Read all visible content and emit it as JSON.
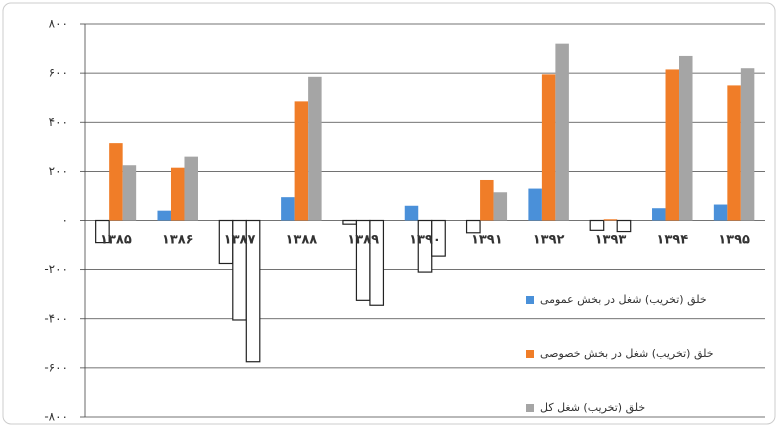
{
  "chart_data": {
    "type": "bar",
    "categories": [
      "۱۳۸۵",
      "۱۳۸۶",
      "۱۳۸۷",
      "۱۳۸۸",
      "۱۳۸۹",
      "۱۳۹۰",
      "۱۳۹۱",
      "۱۳۹۲",
      "۱۳۹۳",
      "۱۳۹۴",
      "۱۳۹۵"
    ],
    "series": [
      {
        "name": "خلق (تخریب) شغل در بخش عمومی",
        "color": "#4a90d9",
        "values": [
          -90,
          40,
          -175,
          95,
          -15,
          60,
          -50,
          130,
          -40,
          50,
          65
        ]
      },
      {
        "name": "خلق (تخریب) شغل در بخش خصوصی",
        "color": "#f07d28",
        "values": [
          315,
          215,
          -405,
          485,
          -325,
          -210,
          165,
          595,
          5,
          615,
          550
        ]
      },
      {
        "name": "خلق (تخریب) شغل کل",
        "color": "#a5a5a5",
        "values": [
          225,
          260,
          -575,
          585,
          -345,
          -145,
          115,
          720,
          -45,
          670,
          620
        ]
      }
    ],
    "negative_fill": "#ffffff",
    "ylim": [
      -800,
      800
    ],
    "yticks": [
      {
        "value": -800,
        "label": "-۸۰۰"
      },
      {
        "value": -600,
        "label": "-۶۰۰"
      },
      {
        "value": -400,
        "label": "-۴۰۰"
      },
      {
        "value": -200,
        "label": "-۲۰۰"
      },
      {
        "value": 0,
        "label": "۰"
      },
      {
        "value": 200,
        "label": "۲۰۰"
      },
      {
        "value": 400,
        "label": "۴۰۰"
      },
      {
        "value": 600,
        "label": "۶۰۰"
      },
      {
        "value": 800,
        "label": "۸۰۰"
      }
    ],
    "grid": true
  }
}
